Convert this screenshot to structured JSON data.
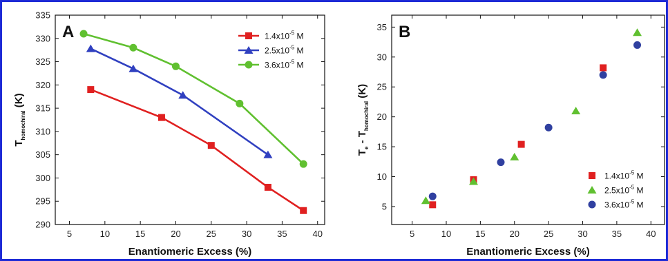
{
  "chart_data": [
    {
      "panel_label": "A",
      "type": "line",
      "xlabel": "Enantiomeric Excess (%)",
      "ylabel": {
        "main": "T",
        "sub": "homochiral",
        "unit": " (K)"
      },
      "xlim": [
        3,
        41
      ],
      "ylim": [
        290,
        335
      ],
      "xticks": [
        5,
        10,
        15,
        20,
        25,
        30,
        35,
        40
      ],
      "yticks": [
        290,
        295,
        300,
        305,
        310,
        315,
        320,
        325,
        330,
        335
      ],
      "legend_position": "top-right",
      "series": [
        {
          "name": {
            "base": "1.4x10",
            "exp": "-5",
            "unit": " M"
          },
          "color": "#e02020",
          "marker": "square",
          "points": [
            [
              8,
              319
            ],
            [
              18,
              313
            ],
            [
              25,
              307
            ],
            [
              33,
              298
            ],
            [
              38,
              293
            ]
          ]
        },
        {
          "name": {
            "base": "2.5x10",
            "exp": "-5",
            "unit": " M"
          },
          "color": "#3040c0",
          "marker": "triangle",
          "points": [
            [
              8,
              327.8
            ],
            [
              14,
              323.5
            ],
            [
              21,
              317.8
            ],
            [
              33,
              305
            ]
          ]
        },
        {
          "name": {
            "base": "3.6x10",
            "exp": "-5",
            "unit": " M"
          },
          "color": "#60c030",
          "marker": "circle",
          "points": [
            [
              7,
              331
            ],
            [
              14,
              328
            ],
            [
              20,
              324
            ],
            [
              29,
              316
            ],
            [
              38,
              303
            ]
          ]
        }
      ]
    },
    {
      "panel_label": "B",
      "type": "scatter",
      "xlabel": "Enantiomeric Excess (%)",
      "ylabel": {
        "main": "T",
        "sub1": "e",
        "mid": " - T",
        "sub2": "homochiral",
        "unit": " (K)"
      },
      "xlim": [
        2,
        42
      ],
      "ylim": [
        2,
        37
      ],
      "xticks": [
        5,
        10,
        15,
        20,
        25,
        30,
        35,
        40
      ],
      "yticks": [
        5,
        10,
        15,
        20,
        25,
        30,
        35
      ],
      "legend_position": "bottom-right",
      "series": [
        {
          "name": {
            "base": "1.4x10",
            "exp": "-5",
            "unit": " M"
          },
          "color": "#e02020",
          "marker": "square",
          "points": [
            [
              8,
              5.3
            ],
            [
              14,
              9.5
            ],
            [
              21,
              15.4
            ],
            [
              33,
              28.2
            ]
          ]
        },
        {
          "name": {
            "base": "2.5x10",
            "exp": "-5",
            "unit": " M"
          },
          "color": "#60c030",
          "marker": "triangle",
          "points": [
            [
              7,
              6
            ],
            [
              14,
              9.2
            ],
            [
              20,
              13.3
            ],
            [
              29,
              21
            ],
            [
              38,
              34.1
            ]
          ]
        },
        {
          "name": {
            "base": "3.6x10",
            "exp": "-5",
            "unit": " M"
          },
          "color": "#3040a0",
          "marker": "circle",
          "points": [
            [
              8,
              6.7
            ],
            [
              18,
              12.4
            ],
            [
              25,
              18.2
            ],
            [
              33,
              27
            ],
            [
              38,
              32
            ]
          ]
        }
      ]
    }
  ]
}
